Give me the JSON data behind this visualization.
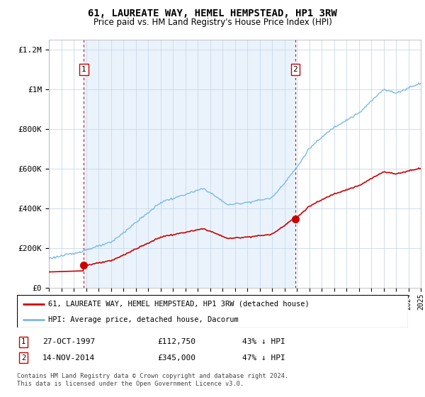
{
  "title": "61, LAUREATE WAY, HEMEL HEMPSTEAD, HP1 3RW",
  "subtitle": "Price paid vs. HM Land Registry's House Price Index (HPI)",
  "legend_line1": "61, LAUREATE WAY, HEMEL HEMPSTEAD, HP1 3RW (detached house)",
  "legend_line2": "HPI: Average price, detached house, Dacorum",
  "sale1_date": "27-OCT-1997",
  "sale1_price": 112750,
  "sale1_label": "43% ↓ HPI",
  "sale2_date": "14-NOV-2014",
  "sale2_price": 345000,
  "sale2_label": "47% ↓ HPI",
  "footer": "Contains HM Land Registry data © Crown copyright and database right 2024.\nThis data is licensed under the Open Government Licence v3.0.",
  "hpi_color": "#7ab8e8",
  "hpi_fill_color": "#ddeeff",
  "price_color": "#cc0000",
  "vline_color": "#cc0000",
  "ylim": [
    0,
    1250000
  ],
  "yticks": [
    0,
    200000,
    400000,
    600000,
    800000,
    1000000,
    1200000
  ],
  "ytick_labels": [
    "£0",
    "£200K",
    "£400K",
    "£600K",
    "£800K",
    "£1M",
    "£1.2M"
  ],
  "x_start_year": 1995,
  "x_end_year": 2025,
  "sale1_year": 1997.82,
  "sale2_year": 2014.87,
  "bg_color": "#eaf3fb"
}
